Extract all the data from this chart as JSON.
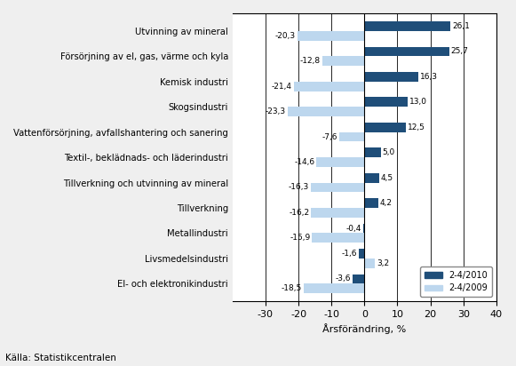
{
  "categories": [
    "El- och elektronikindustri",
    "Livsmedelsindustri",
    "Metallindustri",
    "Tillverkning",
    "Tillverkning och utvinning av mineral",
    "Textil-, beklädnads- och läderindustri",
    "Vattenförsörjning, avfallshantering och sanering",
    "Skogsindustri",
    "Kemisk industri",
    "Försörjning av el, gas, värme och kyla",
    "Utvinning av mineral"
  ],
  "values_2010": [
    -3.6,
    -1.6,
    -0.4,
    4.2,
    4.5,
    5.0,
    12.5,
    13.0,
    16.3,
    25.7,
    26.1
  ],
  "values_2009": [
    -18.5,
    3.2,
    -15.9,
    -16.2,
    -16.3,
    -14.6,
    -7.6,
    -23.3,
    -21.4,
    -12.8,
    -20.3
  ],
  "color_2010": "#1F4E79",
  "color_2009": "#BDD7EE",
  "xlabel": "Årsförändring, %",
  "legend_2010": "2-4/2010",
  "legend_2009": "2-4/2009",
  "source": "Källa: Statistikcentralen",
  "xlim": [
    -40,
    40
  ],
  "xticks": [
    -30,
    -20,
    -10,
    0,
    10,
    20,
    30,
    40
  ],
  "bar_height": 0.38,
  "background_color": "#EFEFEF",
  "plot_background": "#FFFFFF"
}
